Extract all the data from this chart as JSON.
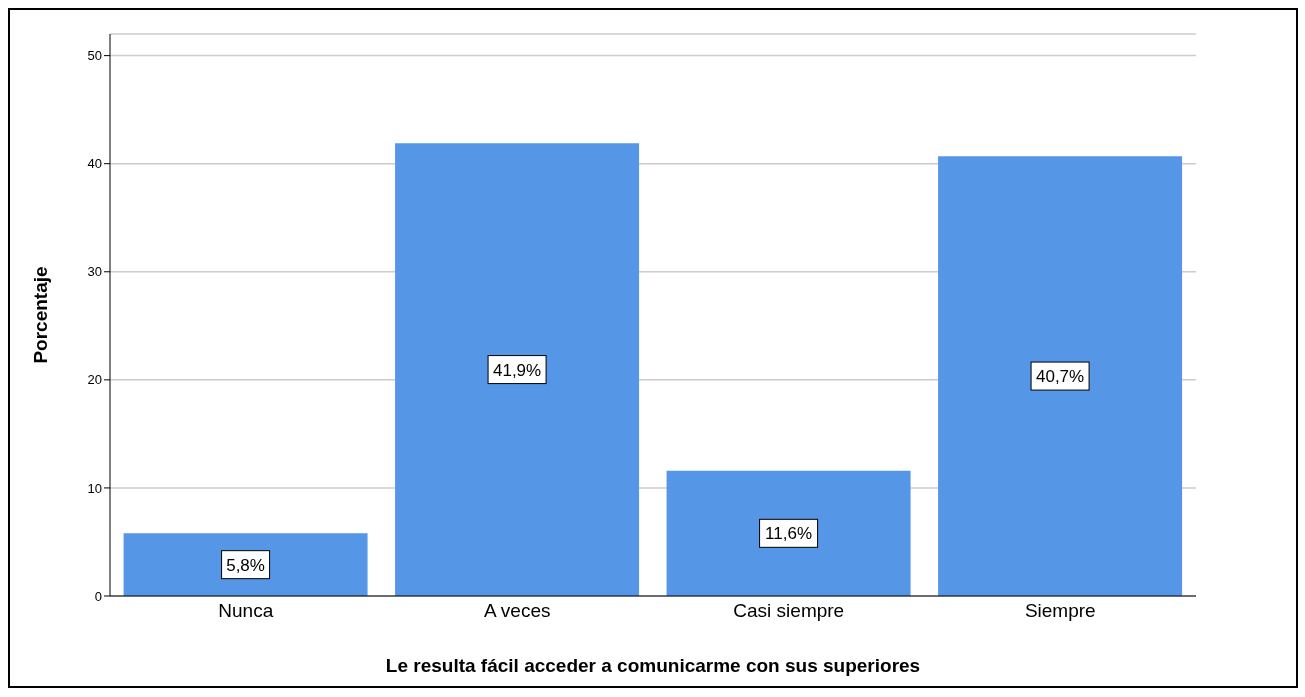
{
  "chart_data": {
    "type": "bar",
    "xlabel": "Le resulta fácil acceder a comunicarme con sus superiores",
    "ylabel": "Porcentaje",
    "categories": [
      "Nunca",
      "A veces",
      "Casi siempre",
      "Siempre"
    ],
    "values": [
      5.8,
      41.9,
      11.6,
      40.7
    ],
    "color": "#5596e6",
    "value_labels": [
      "5,8%",
      "41,9%",
      "11,6%",
      "40,7%"
    ],
    "ylim": [
      0,
      52
    ],
    "yticks": [
      0,
      10,
      20,
      30,
      40,
      50
    ],
    "grid": "y"
  }
}
